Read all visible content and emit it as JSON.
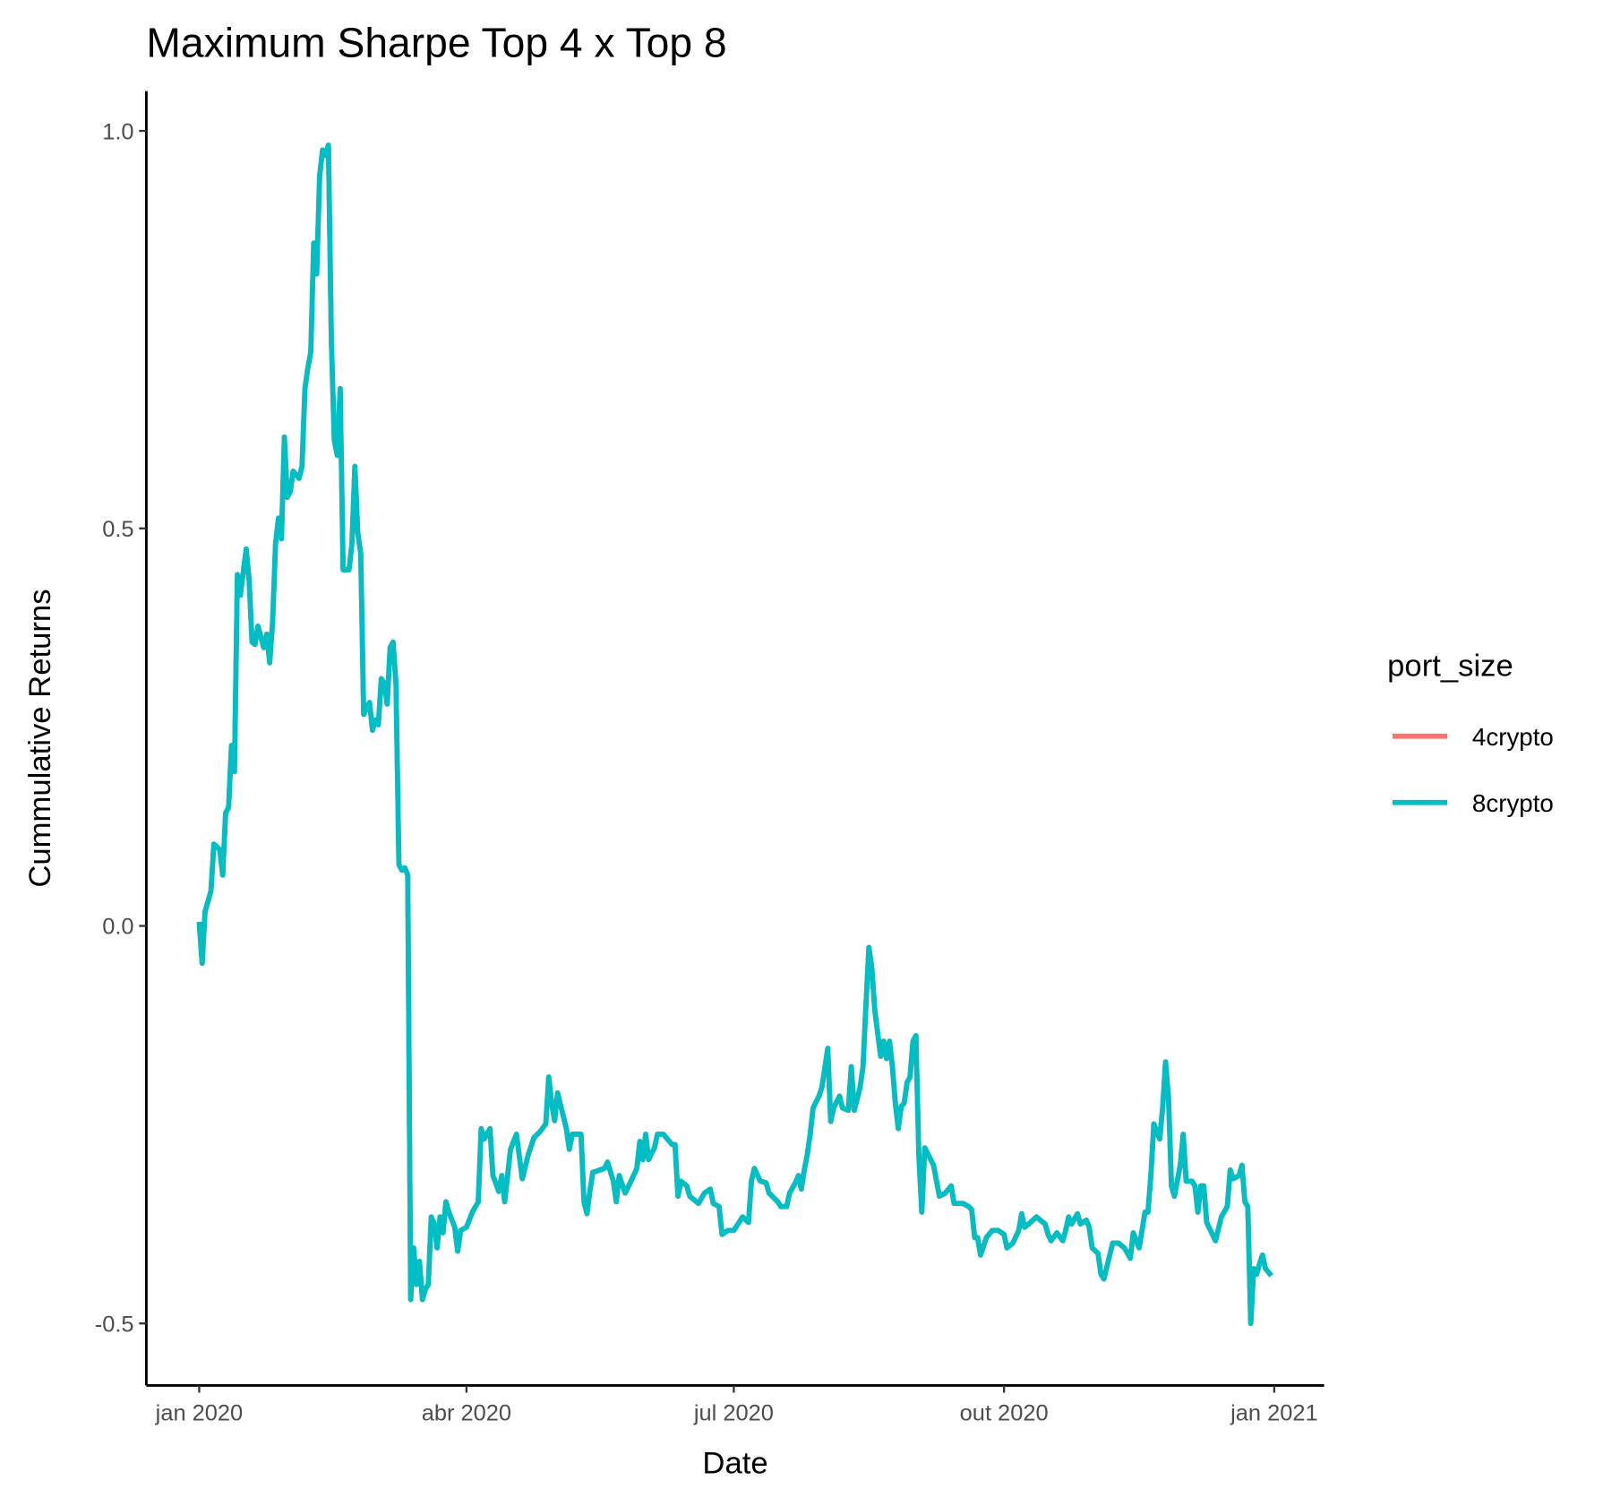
{
  "chart_data": {
    "type": "line",
    "title": "Maximum Sharpe Top 4 x Top 8",
    "x_label": "Date",
    "y_label": "Cummulative Returns",
    "legend_title": "port_size",
    "legend_position": "right",
    "grid": false,
    "xlim": [
      "2019-12-14",
      "2021-01-18"
    ],
    "ylim": [
      -0.578,
      1.05
    ],
    "xticks": [
      {
        "value": "2020-01-01",
        "label": "jan 2020"
      },
      {
        "value": "2020-04-01",
        "label": "abr 2020"
      },
      {
        "value": "2020-07-01",
        "label": "jul 2020"
      },
      {
        "value": "2020-10-01",
        "label": "out 2020"
      },
      {
        "value": "2021-01-01",
        "label": "jan 2021"
      }
    ],
    "yticks": [
      -0.5,
      {
        "value": 0,
        "label": "0.0"
      },
      0.5,
      {
        "value": 1,
        "label": "1.0"
      }
    ],
    "x": [
      "2020-01-01",
      "2020-01-02",
      "2020-01-03",
      "2020-01-05",
      "2020-01-06",
      "2020-01-08",
      "2020-01-09",
      "2020-01-10",
      "2020-01-11",
      "2020-01-12",
      "2020-01-13",
      "2020-01-14",
      "2020-01-15",
      "2020-01-17",
      "2020-01-18",
      "2020-01-19",
      "2020-01-20",
      "2020-01-21",
      "2020-01-23",
      "2020-01-24",
      "2020-01-25",
      "2020-01-26",
      "2020-01-27",
      "2020-01-28",
      "2020-01-29",
      "2020-01-30",
      "2020-01-31",
      "2020-02-01",
      "2020-02-02",
      "2020-02-04",
      "2020-02-05",
      "2020-02-06",
      "2020-02-07",
      "2020-02-08",
      "2020-02-09",
      "2020-02-10",
      "2020-02-11",
      "2020-02-12",
      "2020-02-13",
      "2020-02-14",
      "2020-02-15",
      "2020-02-16",
      "2020-02-17",
      "2020-02-18",
      "2020-02-19",
      "2020-02-21",
      "2020-02-22",
      "2020-02-23",
      "2020-02-24",
      "2020-02-25",
      "2020-02-26",
      "2020-02-28",
      "2020-02-29",
      "2020-03-01",
      "2020-03-02",
      "2020-03-03",
      "2020-03-04",
      "2020-03-05",
      "2020-03-06",
      "2020-03-07",
      "2020-03-08",
      "2020-03-09",
      "2020-03-10",
      "2020-03-11",
      "2020-03-12",
      "2020-03-13",
      "2020-03-14",
      "2020-03-15",
      "2020-03-16",
      "2020-03-17",
      "2020-03-18",
      "2020-03-19",
      "2020-03-20",
      "2020-03-21",
      "2020-03-22",
      "2020-03-23",
      "2020-03-24",
      "2020-03-25",
      "2020-03-26",
      "2020-03-28",
      "2020-03-29",
      "2020-03-30",
      "2020-04-01",
      "2020-04-03",
      "2020-04-05",
      "2020-04-06",
      "2020-04-07",
      "2020-04-09",
      "2020-04-10",
      "2020-04-12",
      "2020-04-13",
      "2020-04-14",
      "2020-04-16",
      "2020-04-18",
      "2020-04-20",
      "2020-04-22",
      "2020-04-24",
      "2020-04-26",
      "2020-04-28",
      "2020-04-29",
      "2020-04-30",
      "2020-05-01",
      "2020-05-02",
      "2020-05-05",
      "2020-05-06",
      "2020-05-07",
      "2020-05-10",
      "2020-05-11",
      "2020-05-12",
      "2020-05-13",
      "2020-05-14",
      "2020-05-18",
      "2020-05-19",
      "2020-05-21",
      "2020-05-22",
      "2020-05-23",
      "2020-05-25",
      "2020-05-27",
      "2020-05-29",
      "2020-05-30",
      "2020-05-31",
      "2020-06-01",
      "2020-06-02",
      "2020-06-04",
      "2020-06-05",
      "2020-06-07",
      "2020-06-10",
      "2020-06-11",
      "2020-06-12",
      "2020-06-13",
      "2020-06-15",
      "2020-06-16",
      "2020-06-19",
      "2020-06-21",
      "2020-06-23",
      "2020-06-24",
      "2020-06-26",
      "2020-06-27",
      "2020-06-29",
      "2020-07-01",
      "2020-07-04",
      "2020-07-06",
      "2020-07-07",
      "2020-07-08",
      "2020-07-10",
      "2020-07-12",
      "2020-07-13",
      "2020-07-16",
      "2020-07-17",
      "2020-07-19",
      "2020-07-20",
      "2020-07-22",
      "2020-07-23",
      "2020-07-24",
      "2020-07-25",
      "2020-07-26",
      "2020-07-27",
      "2020-07-28",
      "2020-07-30",
      "2020-07-31",
      "2020-08-02",
      "2020-08-03",
      "2020-08-04",
      "2020-08-06",
      "2020-08-07",
      "2020-08-09",
      "2020-08-10",
      "2020-08-11",
      "2020-08-13",
      "2020-08-14",
      "2020-08-15",
      "2020-08-16",
      "2020-08-17",
      "2020-08-18",
      "2020-08-20",
      "2020-08-21",
      "2020-08-22",
      "2020-08-23",
      "2020-08-24",
      "2020-08-25",
      "2020-08-26",
      "2020-08-27",
      "2020-08-28",
      "2020-08-29",
      "2020-08-30",
      "2020-08-31",
      "2020-09-01",
      "2020-09-02",
      "2020-09-03",
      "2020-09-04",
      "2020-09-07",
      "2020-09-09",
      "2020-09-11",
      "2020-09-13",
      "2020-09-14",
      "2020-09-17",
      "2020-09-19",
      "2020-09-20",
      "2020-09-21",
      "2020-09-22",
      "2020-09-23",
      "2020-09-25",
      "2020-09-27",
      "2020-09-29",
      "2020-10-01",
      "2020-10-02",
      "2020-10-04",
      "2020-10-06",
      "2020-10-07",
      "2020-10-08",
      "2020-10-10",
      "2020-10-12",
      "2020-10-15",
      "2020-10-16",
      "2020-10-17",
      "2020-10-19",
      "2020-10-21",
      "2020-10-22",
      "2020-10-23",
      "2020-10-24",
      "2020-10-26",
      "2020-10-27",
      "2020-10-29",
      "2020-10-30",
      "2020-10-31",
      "2020-11-02",
      "2020-11-03",
      "2020-11-04",
      "2020-11-07",
      "2020-11-09",
      "2020-11-11",
      "2020-11-13",
      "2020-11-14",
      "2020-11-16",
      "2020-11-18",
      "2020-11-19",
      "2020-11-20",
      "2020-11-21",
      "2020-11-23",
      "2020-11-24",
      "2020-11-25",
      "2020-11-26",
      "2020-11-27",
      "2020-11-28",
      "2020-11-30",
      "2020-12-01",
      "2020-12-02",
      "2020-12-04",
      "2020-12-05",
      "2020-12-06",
      "2020-12-07",
      "2020-12-08",
      "2020-12-09",
      "2020-12-12",
      "2020-12-14",
      "2020-12-16",
      "2020-12-17",
      "2020-12-18",
      "2020-12-20",
      "2020-12-21",
      "2020-12-22",
      "2020-12-23",
      "2020-12-24",
      "2020-12-25",
      "2020-12-26",
      "2020-12-27",
      "2020-12-28",
      "2020-12-29",
      "2020-12-31"
    ],
    "series": [
      {
        "name": "4crypto",
        "color": "#F8766D",
        "values": [
          0.005,
          -0.047,
          0.018,
          0.044,
          0.103,
          0.096,
          0.064,
          0.142,
          0.149,
          0.227,
          0.194,
          0.442,
          0.416,
          0.474,
          0.435,
          0.357,
          0.354,
          0.377,
          0.35,
          0.367,
          0.331,
          0.383,
          0.481,
          0.513,
          0.487,
          0.615,
          0.539,
          0.546,
          0.572,
          0.563,
          0.578,
          0.676,
          0.702,
          0.722,
          0.859,
          0.82,
          0.943,
          0.976,
          0.969,
          0.982,
          0.735,
          0.611,
          0.592,
          0.676,
          0.448,
          0.448,
          0.481,
          0.578,
          0.494,
          0.468,
          0.266,
          0.281,
          0.246,
          0.259,
          0.253,
          0.311,
          0.305,
          0.279,
          0.35,
          0.357,
          0.305,
          0.077,
          0.07,
          0.073,
          0.064,
          -0.47,
          -0.405,
          -0.451,
          -0.422,
          -0.47,
          -0.457,
          -0.451,
          -0.366,
          -0.375,
          -0.405,
          -0.366,
          -0.386,
          -0.347,
          -0.36,
          -0.379,
          -0.409,
          -0.383,
          -0.379,
          -0.36,
          -0.347,
          -0.255,
          -0.268,
          -0.255,
          -0.314,
          -0.334,
          -0.314,
          -0.347,
          -0.281,
          -0.262,
          -0.318,
          -0.288,
          -0.266,
          -0.259,
          -0.249,
          -0.19,
          -0.223,
          -0.245,
          -0.21,
          -0.255,
          -0.281,
          -0.262,
          -0.262,
          -0.347,
          -0.362,
          -0.334,
          -0.31,
          -0.305,
          -0.297,
          -0.321,
          -0.347,
          -0.314,
          -0.336,
          -0.321,
          -0.305,
          -0.271,
          -0.294,
          -0.262,
          -0.294,
          -0.279,
          -0.262,
          -0.262,
          -0.275,
          -0.275,
          -0.34,
          -0.321,
          -0.327,
          -0.34,
          -0.349,
          -0.336,
          -0.331,
          -0.349,
          -0.353,
          -0.388,
          -0.383,
          -0.383,
          -0.366,
          -0.373,
          -0.321,
          -0.305,
          -0.321,
          -0.323,
          -0.336,
          -0.347,
          -0.353,
          -0.353,
          -0.336,
          -0.323,
          -0.314,
          -0.331,
          -0.307,
          -0.288,
          -0.262,
          -0.229,
          -0.214,
          -0.203,
          -0.154,
          -0.246,
          -0.229,
          -0.214,
          -0.229,
          -0.232,
          -0.177,
          -0.232,
          -0.203,
          -0.177,
          -0.099,
          -0.027,
          -0.053,
          -0.106,
          -0.164,
          -0.145,
          -0.167,
          -0.145,
          -0.177,
          -0.223,
          -0.255,
          -0.227,
          -0.223,
          -0.197,
          -0.19,
          -0.145,
          -0.138,
          -0.288,
          -0.36,
          -0.279,
          -0.301,
          -0.34,
          -0.336,
          -0.327,
          -0.349,
          -0.349,
          -0.353,
          -0.357,
          -0.392,
          -0.392,
          -0.414,
          -0.392,
          -0.383,
          -0.383,
          -0.388,
          -0.405,
          -0.399,
          -0.383,
          -0.362,
          -0.379,
          -0.373,
          -0.366,
          -0.375,
          -0.388,
          -0.396,
          -0.386,
          -0.396,
          -0.383,
          -0.366,
          -0.375,
          -0.362,
          -0.375,
          -0.37,
          -0.379,
          -0.405,
          -0.412,
          -0.438,
          -0.444,
          -0.399,
          -0.399,
          -0.405,
          -0.418,
          -0.386,
          -0.405,
          -0.36,
          -0.36,
          -0.314,
          -0.249,
          -0.268,
          -0.229,
          -0.171,
          -0.216,
          -0.327,
          -0.34,
          -0.301,
          -0.262,
          -0.321,
          -0.321,
          -0.327,
          -0.36,
          -0.327,
          -0.327,
          -0.373,
          -0.396,
          -0.366,
          -0.353,
          -0.307,
          -0.318,
          -0.314,
          -0.301,
          -0.347,
          -0.353,
          -0.5,
          -0.431,
          -0.438,
          -0.425,
          -0.414,
          -0.431,
          -0.44
        ]
      },
      {
        "name": "8crypto",
        "color": "#00BFC4",
        "values": [
          0.005,
          -0.047,
          0.018,
          0.044,
          0.103,
          0.096,
          0.064,
          0.142,
          0.149,
          0.227,
          0.194,
          0.442,
          0.416,
          0.474,
          0.435,
          0.357,
          0.354,
          0.377,
          0.35,
          0.367,
          0.331,
          0.383,
          0.481,
          0.513,
          0.487,
          0.615,
          0.539,
          0.546,
          0.572,
          0.563,
          0.578,
          0.676,
          0.702,
          0.722,
          0.859,
          0.82,
          0.943,
          0.976,
          0.969,
          0.982,
          0.735,
          0.611,
          0.592,
          0.676,
          0.448,
          0.448,
          0.481,
          0.578,
          0.494,
          0.468,
          0.266,
          0.281,
          0.246,
          0.259,
          0.253,
          0.311,
          0.305,
          0.279,
          0.35,
          0.357,
          0.305,
          0.077,
          0.07,
          0.073,
          0.064,
          -0.47,
          -0.405,
          -0.451,
          -0.422,
          -0.47,
          -0.457,
          -0.451,
          -0.366,
          -0.375,
          -0.405,
          -0.366,
          -0.386,
          -0.347,
          -0.36,
          -0.379,
          -0.409,
          -0.383,
          -0.379,
          -0.36,
          -0.347,
          -0.255,
          -0.268,
          -0.255,
          -0.314,
          -0.334,
          -0.314,
          -0.347,
          -0.281,
          -0.262,
          -0.318,
          -0.288,
          -0.266,
          -0.259,
          -0.249,
          -0.19,
          -0.223,
          -0.245,
          -0.21,
          -0.255,
          -0.281,
          -0.262,
          -0.262,
          -0.347,
          -0.362,
          -0.334,
          -0.31,
          -0.305,
          -0.297,
          -0.321,
          -0.347,
          -0.314,
          -0.336,
          -0.321,
          -0.305,
          -0.271,
          -0.294,
          -0.262,
          -0.294,
          -0.279,
          -0.262,
          -0.262,
          -0.275,
          -0.275,
          -0.34,
          -0.321,
          -0.327,
          -0.34,
          -0.349,
          -0.336,
          -0.331,
          -0.349,
          -0.353,
          -0.388,
          -0.383,
          -0.383,
          -0.366,
          -0.373,
          -0.321,
          -0.305,
          -0.321,
          -0.323,
          -0.336,
          -0.347,
          -0.353,
          -0.353,
          -0.336,
          -0.323,
          -0.314,
          -0.331,
          -0.307,
          -0.288,
          -0.262,
          -0.229,
          -0.214,
          -0.203,
          -0.154,
          -0.246,
          -0.229,
          -0.214,
          -0.229,
          -0.232,
          -0.177,
          -0.232,
          -0.203,
          -0.177,
          -0.099,
          -0.027,
          -0.053,
          -0.106,
          -0.164,
          -0.145,
          -0.167,
          -0.145,
          -0.177,
          -0.223,
          -0.255,
          -0.227,
          -0.223,
          -0.197,
          -0.19,
          -0.145,
          -0.138,
          -0.288,
          -0.36,
          -0.279,
          -0.301,
          -0.34,
          -0.336,
          -0.327,
          -0.349,
          -0.349,
          -0.353,
          -0.357,
          -0.392,
          -0.392,
          -0.414,
          -0.392,
          -0.383,
          -0.383,
          -0.388,
          -0.405,
          -0.399,
          -0.383,
          -0.362,
          -0.379,
          -0.373,
          -0.366,
          -0.375,
          -0.388,
          -0.396,
          -0.386,
          -0.396,
          -0.383,
          -0.366,
          -0.375,
          -0.362,
          -0.375,
          -0.37,
          -0.379,
          -0.405,
          -0.412,
          -0.438,
          -0.444,
          -0.399,
          -0.399,
          -0.405,
          -0.418,
          -0.386,
          -0.405,
          -0.36,
          -0.36,
          -0.314,
          -0.249,
          -0.268,
          -0.229,
          -0.171,
          -0.216,
          -0.327,
          -0.34,
          -0.301,
          -0.262,
          -0.321,
          -0.321,
          -0.327,
          -0.36,
          -0.327,
          -0.327,
          -0.373,
          -0.396,
          -0.366,
          -0.353,
          -0.307,
          -0.318,
          -0.314,
          -0.301,
          -0.347,
          -0.353,
          -0.5,
          -0.431,
          -0.438,
          -0.425,
          -0.414,
          -0.431,
          -0.44
        ]
      }
    ]
  }
}
